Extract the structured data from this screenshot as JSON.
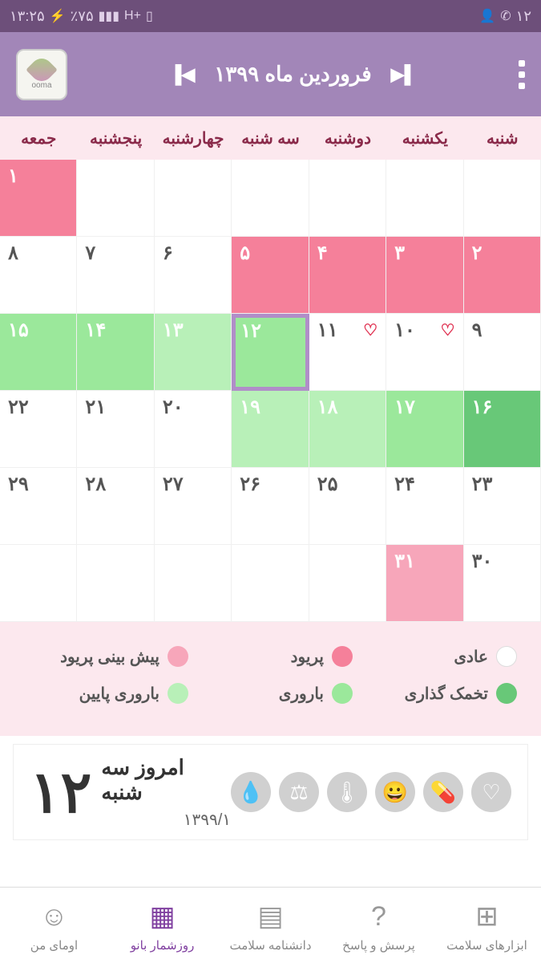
{
  "status": {
    "time": "۱۳:۲۵",
    "battery": "٪۷۵",
    "right_num": "۱۲"
  },
  "header": {
    "title": "فروردین ماه ۱۳۹۹",
    "logo_text": "ooma"
  },
  "weekdays": [
    "جمعه",
    "پنجشنبه",
    "چهارشنبه",
    "سه شنبه",
    "دوشنبه",
    "یکشنبه",
    "شنبه"
  ],
  "cells": [
    {
      "n": "۱",
      "cls": "pink"
    },
    {
      "n": "",
      "cls": "empty"
    },
    {
      "n": "",
      "cls": "empty"
    },
    {
      "n": "",
      "cls": "empty"
    },
    {
      "n": "",
      "cls": "empty"
    },
    {
      "n": "",
      "cls": "empty"
    },
    {
      "n": "",
      "cls": "empty"
    },
    {
      "n": "۸",
      "cls": ""
    },
    {
      "n": "۷",
      "cls": ""
    },
    {
      "n": "۶",
      "cls": ""
    },
    {
      "n": "۵",
      "cls": "pink"
    },
    {
      "n": "۴",
      "cls": "pink"
    },
    {
      "n": "۳",
      "cls": "pink"
    },
    {
      "n": "۲",
      "cls": "pink"
    },
    {
      "n": "۱۵",
      "cls": "green"
    },
    {
      "n": "۱۴",
      "cls": "green"
    },
    {
      "n": "۱۳",
      "cls": "lightgreen"
    },
    {
      "n": "۱۲",
      "cls": "green today"
    },
    {
      "n": "۱۱",
      "cls": "",
      "heart": true
    },
    {
      "n": "۱۰",
      "cls": "",
      "heart": true
    },
    {
      "n": "۹",
      "cls": ""
    },
    {
      "n": "۲۲",
      "cls": ""
    },
    {
      "n": "۲۱",
      "cls": ""
    },
    {
      "n": "۲۰",
      "cls": ""
    },
    {
      "n": "۱۹",
      "cls": "lightgreen"
    },
    {
      "n": "۱۸",
      "cls": "lightgreen"
    },
    {
      "n": "۱۷",
      "cls": "green"
    },
    {
      "n": "۱۶",
      "cls": "darkgreen"
    },
    {
      "n": "۲۹",
      "cls": ""
    },
    {
      "n": "۲۸",
      "cls": ""
    },
    {
      "n": "۲۷",
      "cls": ""
    },
    {
      "n": "۲۶",
      "cls": ""
    },
    {
      "n": "۲۵",
      "cls": ""
    },
    {
      "n": "۲۴",
      "cls": ""
    },
    {
      "n": "۲۳",
      "cls": ""
    },
    {
      "n": "",
      "cls": "empty"
    },
    {
      "n": "",
      "cls": "empty"
    },
    {
      "n": "",
      "cls": "empty"
    },
    {
      "n": "",
      "cls": "empty"
    },
    {
      "n": "",
      "cls": "empty"
    },
    {
      "n": "۳۱",
      "cls": "lightpink"
    },
    {
      "n": "۳۰",
      "cls": ""
    }
  ],
  "legend": {
    "items": [
      {
        "label": "پیش بینی پریود",
        "color": "#f7a6ba"
      },
      {
        "label": "پریود",
        "color": "#f5809a"
      },
      {
        "label": "عادی",
        "color": "#ffffff"
      },
      {
        "label": "باروری پایین",
        "color": "#b8f0b8"
      },
      {
        "label": "باروری",
        "color": "#9be89b"
      },
      {
        "label": "تخمک گذاری",
        "color": "#68c878"
      }
    ]
  },
  "today": {
    "num": "۱۲",
    "label": "امروز سه شنبه",
    "date": "۱۳۹۹/۱"
  },
  "today_icons": [
    "💧",
    "⚖",
    "🌡",
    "😀",
    "💊",
    "♡"
  ],
  "nav": {
    "items": [
      {
        "label": "اومای من",
        "icon": "☺"
      },
      {
        "label": "روزشمار بانو",
        "icon": "▦",
        "active": true
      },
      {
        "label": "دانشنامه سلامت",
        "icon": "▤"
      },
      {
        "label": "پرسش و پاسخ",
        "icon": "?"
      },
      {
        "label": "ابزارهای سلامت",
        "icon": "⊞"
      }
    ]
  },
  "colors": {
    "header_bg": "#a286b8",
    "status_bg": "#6d4f7a",
    "weekday_bg": "#fce8ee",
    "weekday_fg": "#8a2a4a"
  }
}
